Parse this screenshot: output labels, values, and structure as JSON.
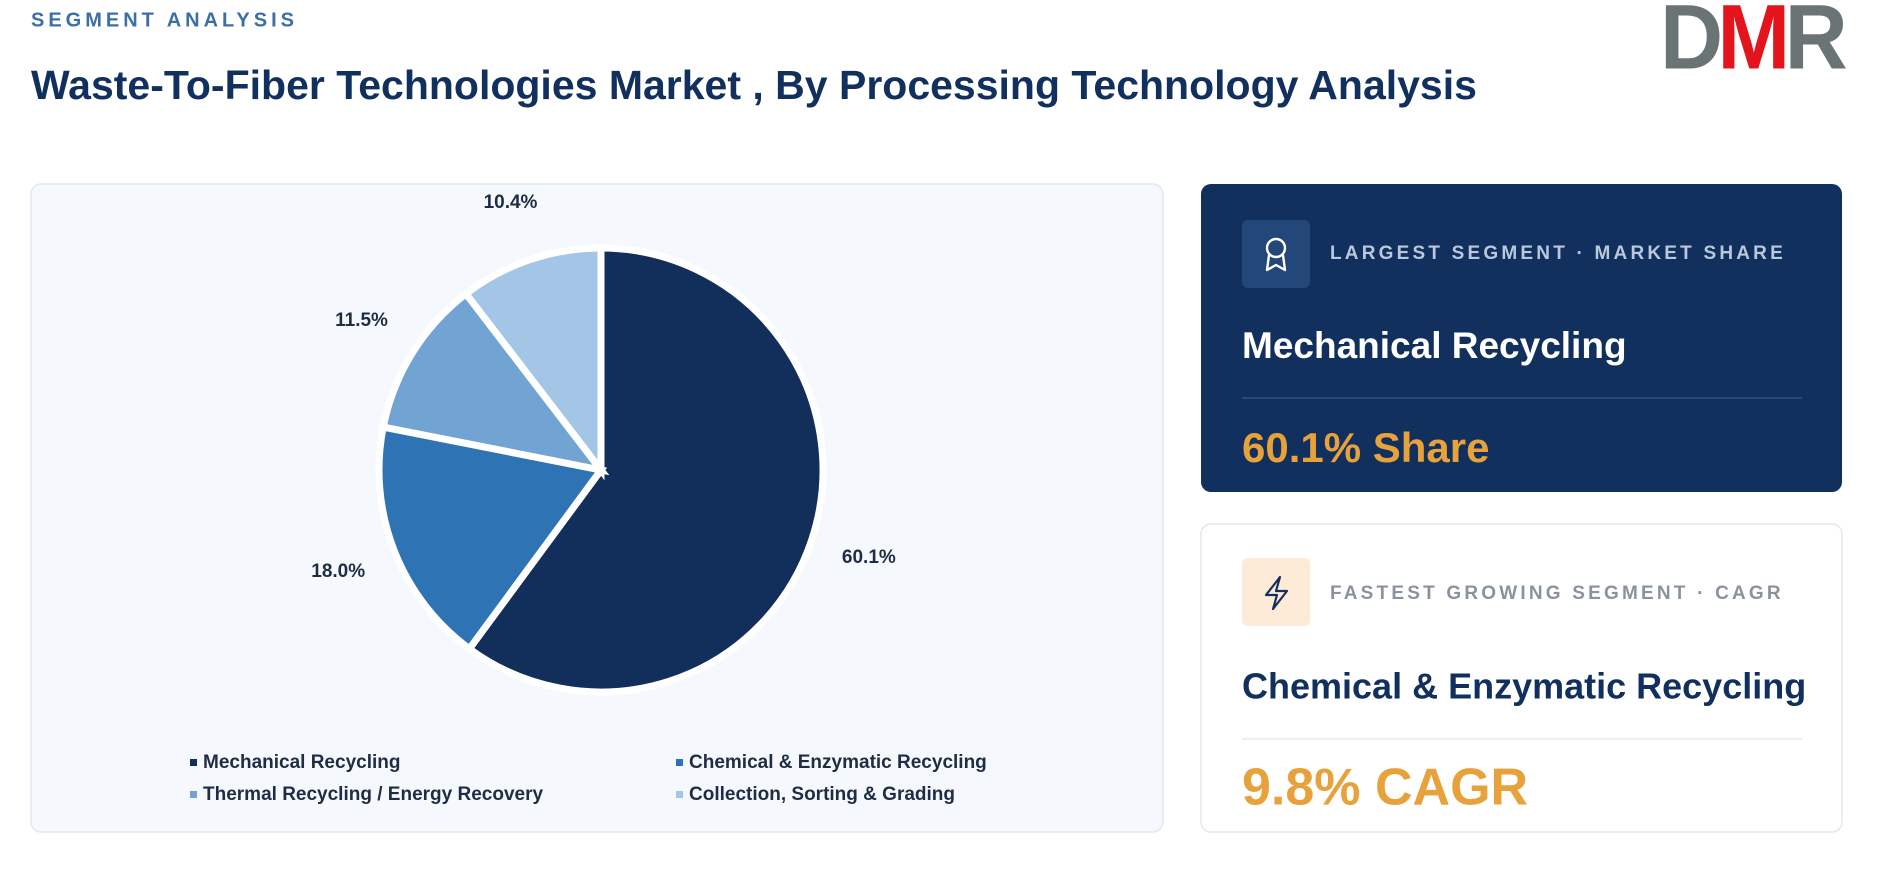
{
  "header": {
    "eyebrow": "SEGMENT ANALYSIS",
    "title": "Waste-To-Fiber Technologies Market , By Processing Technology Analysis",
    "logo": "DMR"
  },
  "chart_data": {
    "type": "pie",
    "categories": [
      "Mechanical Recycling",
      "Chemical & Enzymatic Recycling",
      "Thermal Recycling / Energy Recovery",
      "Collection, Sorting & Grading"
    ],
    "values": [
      60.1,
      18.0,
      11.5,
      10.4
    ],
    "value_labels": [
      "60.1%",
      "18.0%",
      "11.5%",
      "10.4%"
    ],
    "colors": [
      "#122e5a",
      "#2e74b5",
      "#72a4d3",
      "#a4c6e6"
    ]
  },
  "cards": [
    {
      "label": "LARGEST SEGMENT  ·  MARKET SHARE",
      "name": "Mechanical Recycling",
      "value": "60.1% Share"
    },
    {
      "label": "FASTEST GROWING SEGMENT  ·  CAGR",
      "name": "Chemical & Enzymatic Recycling",
      "value": "9.8% CAGR"
    }
  ]
}
